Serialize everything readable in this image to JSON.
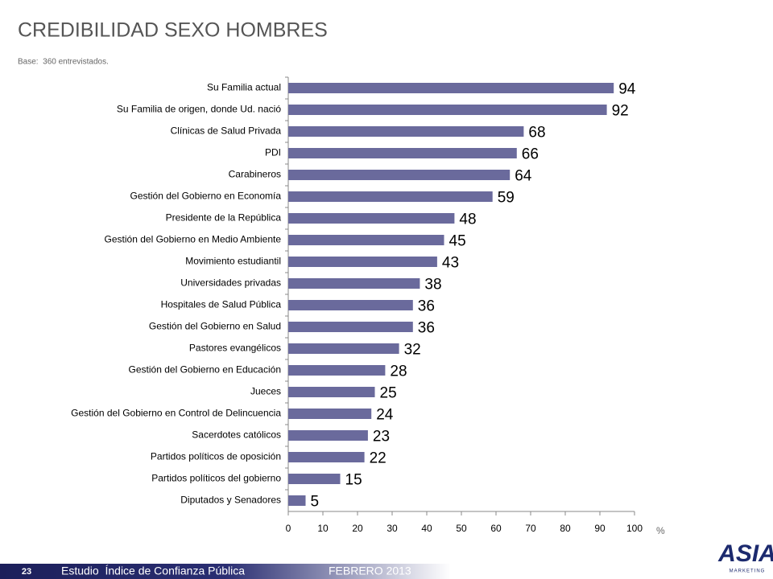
{
  "chart_data": {
    "type": "bar",
    "orientation": "horizontal",
    "title": "CREDIBILIDAD SEXO HOMBRES",
    "subtitle": "Base:  360 entrevistados.",
    "categories": [
      "Su Familia actual",
      "Su Familia de origen, donde Ud. nació",
      "Clínicas de Salud Privada",
      "PDI",
      "Carabineros",
      "Gestión del Gobierno en Economía",
      "Presidente de la República",
      "Gestión del Gobierno en Medio Ambiente",
      "Movimiento estudiantil",
      "Universidades privadas",
      "Hospitales de Salud Pública",
      "Gestión del Gobierno en Salud",
      "Pastores evangélicos",
      "Gestión del Gobierno en Educación",
      "Jueces",
      "Gestión del Gobierno en Control de Delincuencia",
      "Sacerdotes católicos",
      "Partidos políticos de oposición",
      "Partidos políticos del gobierno",
      "Diputados y Senadores"
    ],
    "values": [
      94,
      92,
      68,
      66,
      64,
      59,
      48,
      45,
      43,
      38,
      36,
      36,
      32,
      28,
      25,
      24,
      23,
      22,
      15,
      5
    ],
    "color": "#6a6a9c",
    "xlim": [
      0,
      100
    ],
    "xticks": [
      0,
      10,
      20,
      30,
      40,
      50,
      60,
      70,
      80,
      90,
      100
    ],
    "x_label": "%",
    "grid": false
  },
  "footer": {
    "page": 23,
    "study": "Estudio  Índice de Confianza Pública",
    "date": "FEBRERO 2013"
  },
  "logo": {
    "name": "ASIA",
    "tagline": "MARKETING"
  }
}
